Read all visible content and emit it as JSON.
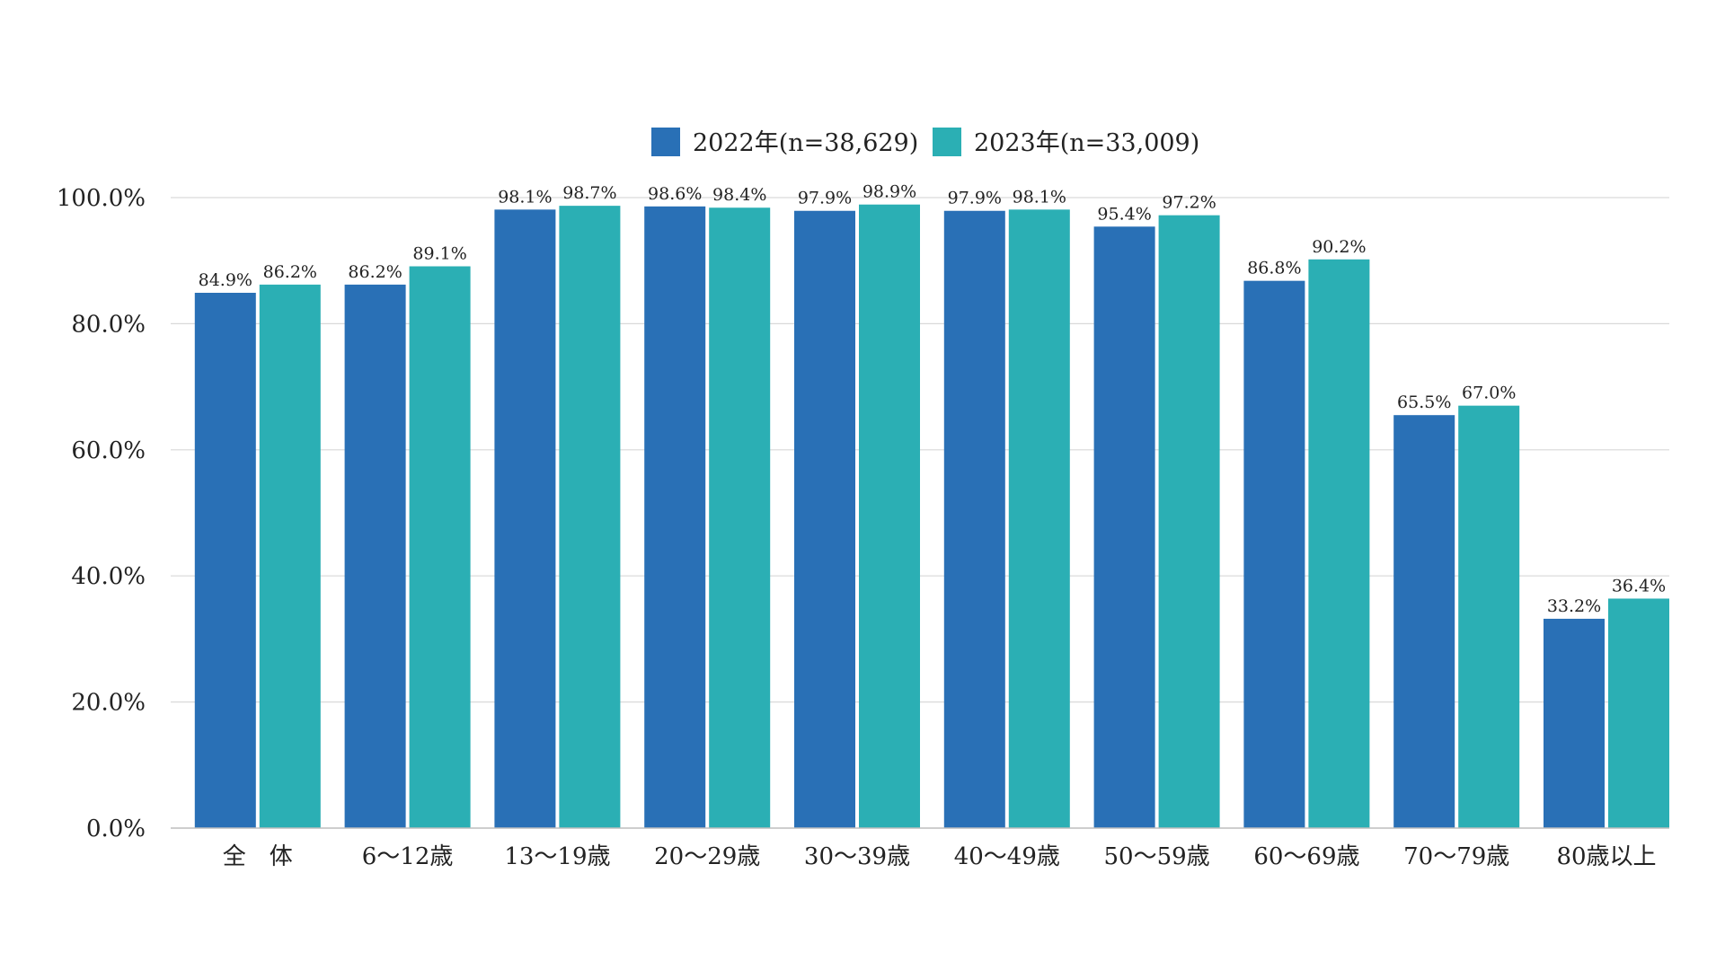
{
  "chart_data": {
    "type": "bar",
    "categories": [
      "全　体",
      "6～12歳",
      "13～19歳",
      "20～29歳",
      "30～39歳",
      "40～49歳",
      "50～59歳",
      "60～69歳",
      "70～79歳",
      "80歳以上"
    ],
    "series": [
      {
        "name": "2022年(n=38,629)",
        "color": "#2970b6",
        "values": [
          84.9,
          86.2,
          98.1,
          98.6,
          97.9,
          97.9,
          95.4,
          86.8,
          65.5,
          33.2
        ],
        "labels": [
          "84.9%",
          "86.2%",
          "98.1%",
          "98.6%",
          "97.9%",
          "97.9%",
          "95.4%",
          "86.8%",
          "65.5%",
          "33.2%"
        ]
      },
      {
        "name": "2023年(n=33,009)",
        "color": "#2bafb4",
        "values": [
          86.2,
          89.1,
          98.7,
          98.4,
          98.9,
          98.1,
          97.2,
          90.2,
          67.0,
          36.4
        ],
        "labels": [
          "86.2%",
          "89.1%",
          "98.7%",
          "98.4%",
          "98.9%",
          "98.1%",
          "97.2%",
          "90.2%",
          "67.0%",
          "36.4%"
        ]
      }
    ],
    "y_ticks": [
      0,
      20,
      40,
      60,
      80,
      100
    ],
    "y_tick_labels": [
      "0.0%",
      "20.0%",
      "40.0%",
      "60.0%",
      "80.0%",
      "100.0%"
    ],
    "ylim": [
      0,
      100
    ],
    "grid": true,
    "legend_position": "top-center"
  }
}
